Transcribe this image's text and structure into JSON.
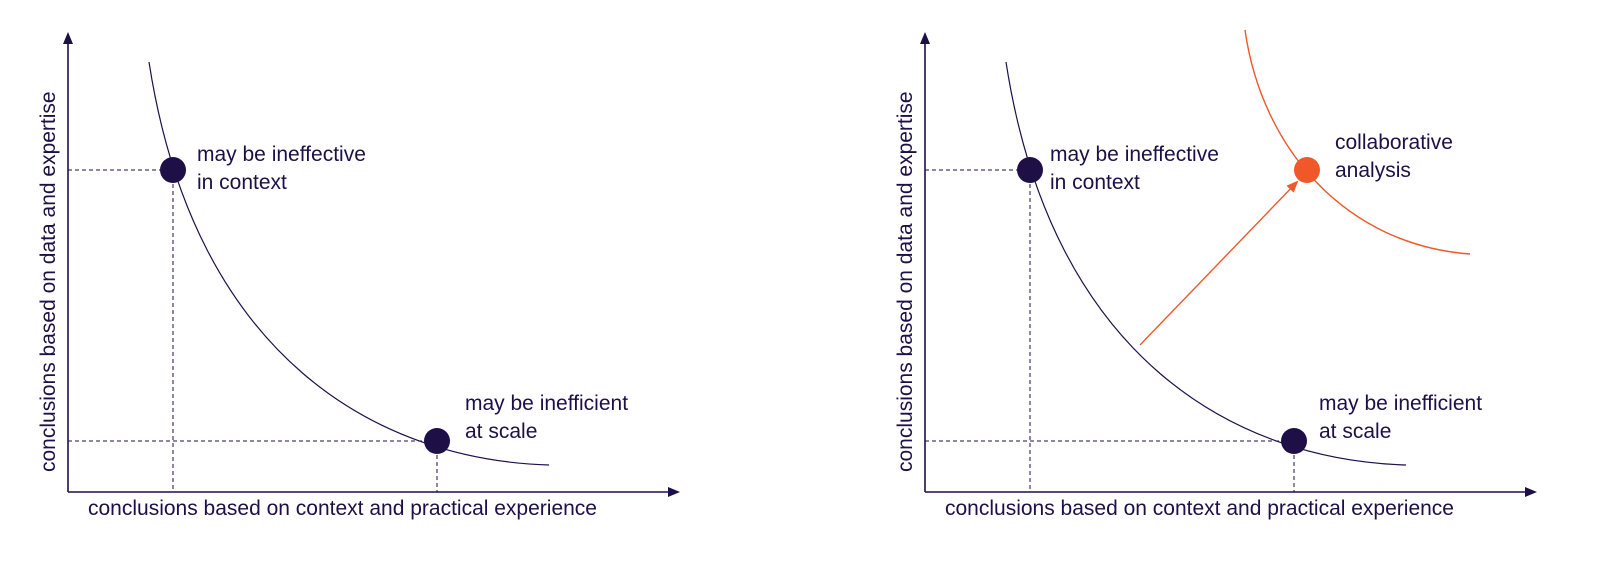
{
  "colors": {
    "ink": "#1f0f47",
    "accent": "#f0582a"
  },
  "panels": [
    {
      "x_axis_label": "conclusions based on context and practical experience",
      "y_axis_label": "conclusions based on data and expertise",
      "points": [
        {
          "id": "ineffective",
          "lines": [
            "may be ineffective",
            "in context"
          ]
        },
        {
          "id": "inefficient",
          "lines": [
            "may be inefficient",
            "at scale"
          ]
        }
      ]
    },
    {
      "x_axis_label": "conclusions based on context and practical experience",
      "y_axis_label": "conclusions based on data and expertise",
      "points": [
        {
          "id": "ineffective",
          "lines": [
            "may be ineffective",
            "in context"
          ]
        },
        {
          "id": "inefficient",
          "lines": [
            "may be inefficient",
            "at scale"
          ]
        },
        {
          "id": "collaborative",
          "lines": [
            "collaborative",
            "analysis"
          ]
        }
      ]
    }
  ]
}
